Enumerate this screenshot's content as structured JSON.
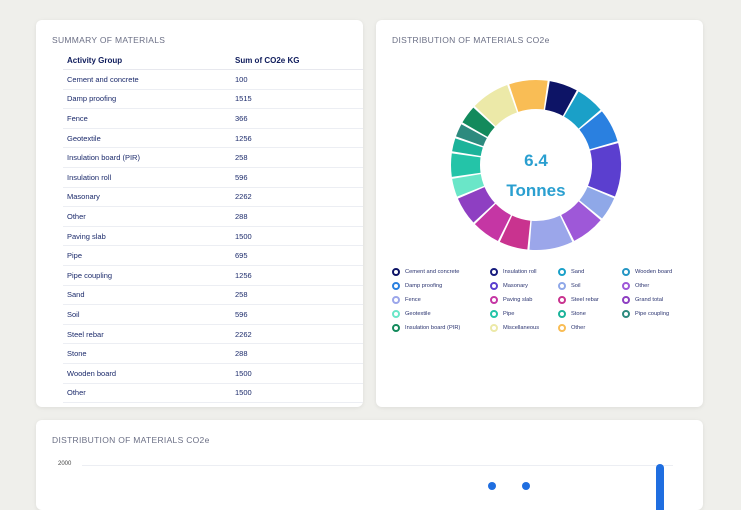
{
  "summary": {
    "title": "SUMMARY OF MATERIALS",
    "headers": [
      "Activity Group",
      "Sum of CO2e KG"
    ],
    "rows": [
      [
        "Cement and concrete",
        "100"
      ],
      [
        "Damp proofing",
        "1515"
      ],
      [
        "Fence",
        "366"
      ],
      [
        "Geotextile",
        "1256"
      ],
      [
        "Insulation board (PIR)",
        "258"
      ],
      [
        "Insulation roll",
        "596"
      ],
      [
        "Masonary",
        "2262"
      ],
      [
        "Other",
        "288"
      ],
      [
        "Paving slab",
        "1500"
      ],
      [
        "Pipe",
        "695"
      ],
      [
        "Pipe coupling",
        "1256"
      ],
      [
        "Sand",
        "258"
      ],
      [
        "Soil",
        "596"
      ],
      [
        "Steel rebar",
        "2262"
      ],
      [
        "Stone",
        "288"
      ],
      [
        "Wooden board",
        "1500"
      ],
      [
        "Other",
        "1500"
      ]
    ]
  },
  "donut": {
    "title": "DISTRIBUTION OF MATERIALS  CO2e",
    "center_value": "6.4",
    "center_unit": "Tonnes",
    "legend": [
      {
        "label": "Cement and concrete",
        "color": "#0d1466"
      },
      {
        "label": "Insulation roll",
        "color": "#171c7e"
      },
      {
        "label": "Sand",
        "color": "#1aa0c8"
      },
      {
        "label": "Wooden board",
        "color": "#2596c4"
      },
      {
        "label": "Damp proofing",
        "color": "#2a80e0"
      },
      {
        "label": "Masonary",
        "color": "#5b3fcf"
      },
      {
        "label": "Soil",
        "color": "#8fa8e8"
      },
      {
        "label": "Other",
        "color": "#9e58d8"
      },
      {
        "label": "Fence",
        "color": "#9ba6ea"
      },
      {
        "label": "Paving slab",
        "color": "#c536a4"
      },
      {
        "label": "Steel rebar",
        "color": "#c9338f"
      },
      {
        "label": "Grand total",
        "color": "#8e3fc2"
      },
      {
        "label": "Geotextile",
        "color": "#6ae6c8"
      },
      {
        "label": "Pipe",
        "color": "#24c4a8"
      },
      {
        "label": "Stone",
        "color": "#1bb39a"
      },
      {
        "label": "Pipe coupling",
        "color": "#2d8a7e"
      },
      {
        "label": "Insulation board (PIR)",
        "color": "#138a5c"
      },
      {
        "label": "Miscellaneous",
        "color": "#ece9a8"
      },
      {
        "label": "Other",
        "color": "#f9bd55"
      }
    ]
  },
  "chart_data": {
    "type": "pie",
    "labels": [
      "Cement and concrete",
      "Sand",
      "Damp proofing",
      "Masonary",
      "Soil",
      "Other",
      "Fence",
      "Steel rebar",
      "Paving slab",
      "Grand total",
      "Geotextile",
      "Pipe",
      "Stone",
      "Pipe coupling",
      "Insulation board (PIR)",
      "Miscellaneous",
      "Other"
    ],
    "values": [
      6,
      6,
      7,
      11,
      5,
      7,
      9,
      6,
      6,
      6,
      4,
      5,
      3,
      3,
      4,
      8,
      8
    ],
    "colors": [
      "#0d1466",
      "#1aa0c8",
      "#2a80e0",
      "#5b3fcf",
      "#8fa8e8",
      "#9e58d8",
      "#9ba6ea",
      "#c9338f",
      "#c536a4",
      "#8e3fc2",
      "#6ae6c8",
      "#24c4a8",
      "#1bb39a",
      "#2d8a7e",
      "#138a5c",
      "#ece9a8",
      "#f9bd55"
    ]
  },
  "bar": {
    "title": "DISTRIBUTION OF MATERIALS CO2e",
    "y_tick": "2000"
  }
}
